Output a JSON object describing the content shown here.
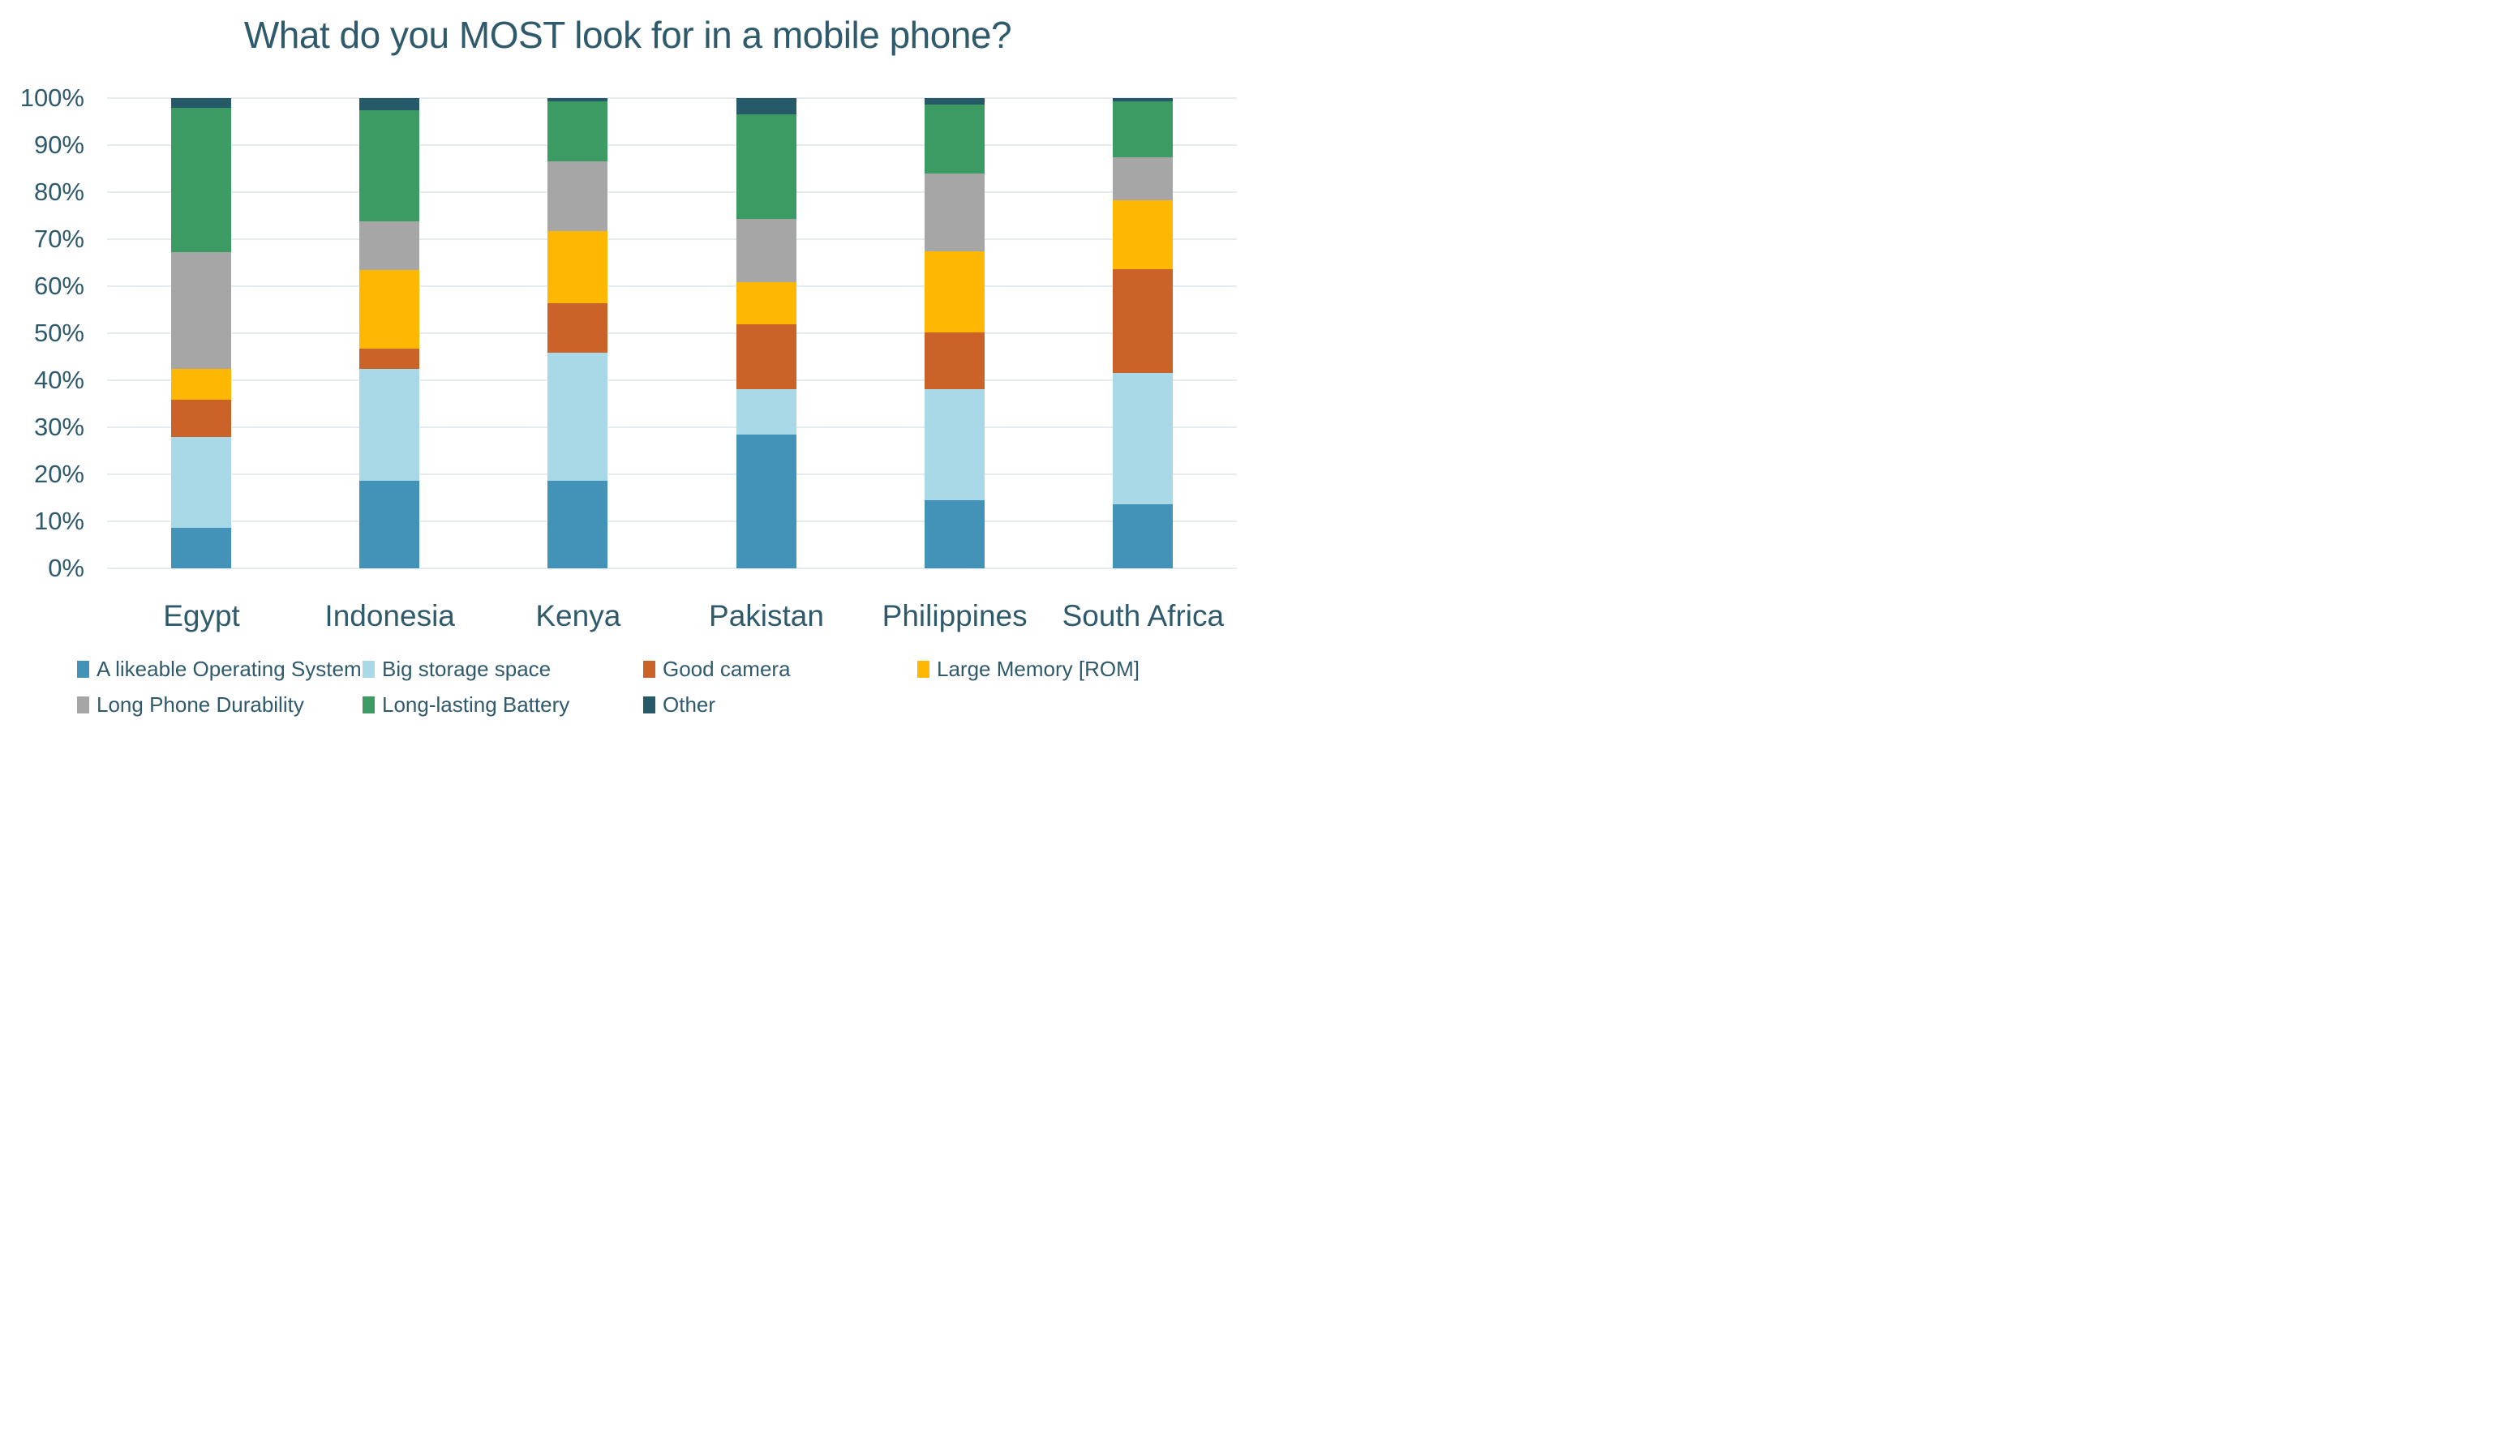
{
  "title": "What do you MOST look for in a mobile phone?",
  "colors": {
    "text": "#2F5A6B",
    "gridline": "#E4EBF1",
    "background": "#FFFFFF"
  },
  "chart_data": {
    "type": "bar",
    "stacked": true,
    "unit": "percent",
    "title": "What do you MOST look for in a mobile phone?",
    "categories": [
      "Egypt",
      "Indonesia",
      "Kenya",
      "Pakistan",
      "Philippines",
      "South Africa"
    ],
    "series": [
      {
        "name": "A likeable Operating System",
        "color": "#4293B7",
        "values": [
          8.6,
          18.7,
          18.7,
          28.4,
          14.5,
          13.6
        ]
      },
      {
        "name": "Big storage space",
        "color": "#A9D8E6",
        "values": [
          19.4,
          23.8,
          27.1,
          9.7,
          23.6,
          28.0
        ]
      },
      {
        "name": "Good camera",
        "color": "#CB6328",
        "values": [
          7.9,
          4.2,
          10.5,
          13.8,
          12.0,
          22.1
        ]
      },
      {
        "name": "Large Memory [ROM]",
        "color": "#FEB804",
        "values": [
          6.6,
          16.8,
          15.5,
          8.9,
          17.4,
          14.5
        ]
      },
      {
        "name": "Long Phone Durability",
        "color": "#A6A6A6",
        "values": [
          24.8,
          10.3,
          14.7,
          13.5,
          16.5,
          9.2
        ]
      },
      {
        "name": "Long-lasting Battery",
        "color": "#3B9B62",
        "values": [
          30.7,
          23.7,
          12.8,
          22.3,
          14.6,
          11.9
        ]
      },
      {
        "name": "Other",
        "color": "#265A69",
        "values": [
          2.0,
          2.5,
          0.7,
          3.4,
          1.4,
          0.7
        ]
      }
    ],
    "xlabel": "",
    "ylabel": "",
    "ylim": [
      0,
      100
    ],
    "y_tick_labels": [
      "0%",
      "10%",
      "20%",
      "30%",
      "40%",
      "50%",
      "60%",
      "70%",
      "80%",
      "90%",
      "100%"
    ],
    "grid": true,
    "legend_position": "bottom",
    "legend_rows": [
      [
        0,
        1,
        2,
        3
      ],
      [
        4,
        5,
        6
      ]
    ]
  }
}
